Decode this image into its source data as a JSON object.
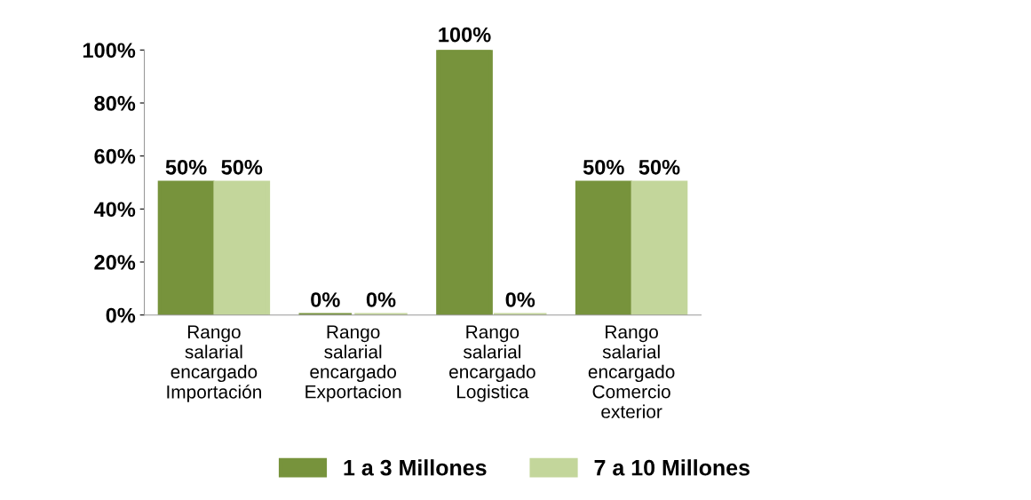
{
  "chart_data": {
    "type": "bar",
    "categories": [
      "Rango salarial encargado Importación",
      "Rango salarial encargado Exportacion",
      "Rango salarial encargado Logistica",
      "Rango salarial encargado Comercio exterior"
    ],
    "series": [
      {
        "name": "1 a 3 Millones",
        "color": "#77933c",
        "values": [
          50,
          0,
          100,
          50
        ],
        "value_labels": [
          "50%",
          "0%",
          "100%",
          "50%"
        ]
      },
      {
        "name": "7 a 10 Millones",
        "color": "#c3d69b",
        "values": [
          50,
          0,
          0,
          50
        ],
        "value_labels": [
          "50%",
          "0%",
          "0%",
          "50%"
        ]
      }
    ],
    "ylim": [
      0,
      100
    ],
    "yticks": [
      {
        "value": 0,
        "label": "0%"
      },
      {
        "value": 20,
        "label": "20%"
      },
      {
        "value": 40,
        "label": "40%"
      },
      {
        "value": 60,
        "label": "60%"
      },
      {
        "value": 80,
        "label": "80%"
      },
      {
        "value": 100,
        "label": "100%"
      }
    ],
    "grid": false,
    "legend": "bottom"
  }
}
